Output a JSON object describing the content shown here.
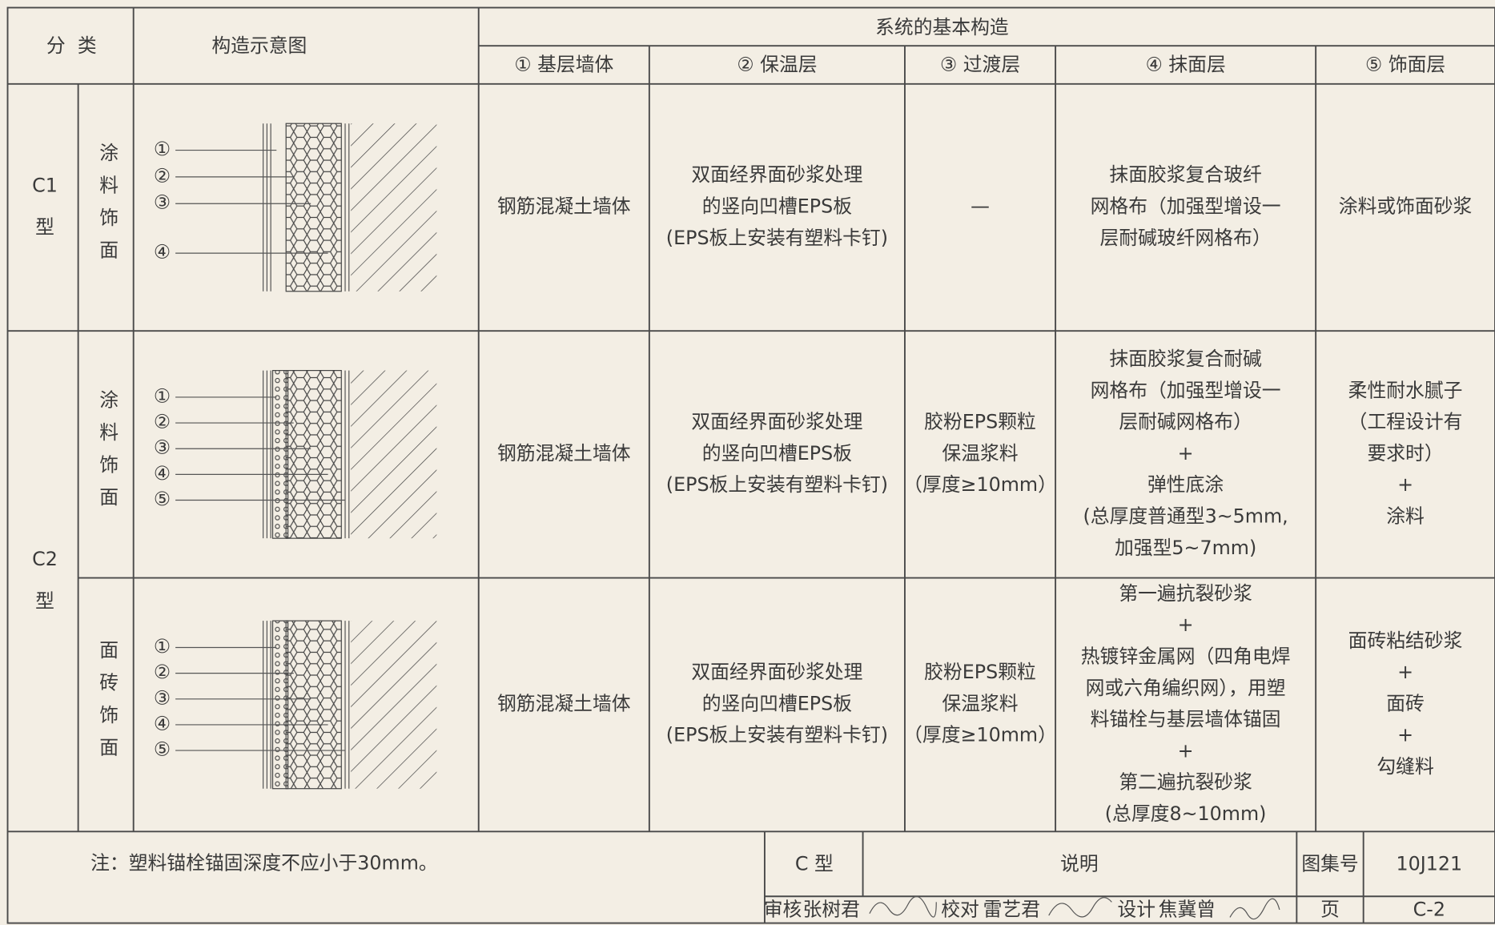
{
  "header": {
    "category": "分  类",
    "diagram": "构造示意图",
    "system": "系统的基本构造",
    "columns": [
      "① 基层墙体",
      "② 保温层",
      "③ 过渡层",
      "④ 抹面层",
      "⑤ 饰面层"
    ]
  },
  "groups": [
    {
      "type": [
        "C1",
        "型"
      ],
      "rows": [
        {
          "finish": "涂料饰面",
          "labels": [
            "①",
            "②",
            "③",
            "④"
          ],
          "cells": [
            [
              "钢筋混凝土墙体"
            ],
            [
              "双面经界面砂浆处理",
              "的竖向凹槽EPS板",
              "(EPS板上安装有塑料卡钉)"
            ],
            [
              "—"
            ],
            [
              "抹面胶浆复合玻纤",
              "网格布（加强型增设一",
              "层耐碱玻纤网格布）"
            ],
            [
              "涂料或饰面砂浆"
            ]
          ]
        }
      ]
    },
    {
      "type": [
        "C2",
        "型"
      ],
      "rows": [
        {
          "finish": "涂料饰面",
          "labels": [
            "①",
            "②",
            "③",
            "④",
            "⑤"
          ],
          "cells": [
            [
              "钢筋混凝土墙体"
            ],
            [
              "双面经界面砂浆处理",
              "的竖向凹槽EPS板",
              "(EPS板上安装有塑料卡钉)"
            ],
            [
              "胶粉EPS颗粒",
              "保温浆料",
              "（厚度≥10mm）"
            ],
            [
              "抹面胶浆复合耐碱",
              "网格布（加强型增设一",
              "层耐碱网格布）",
              "+",
              "弹性底涂",
              "(总厚度普通型3~5mm,",
              "加强型5~7mm)"
            ],
            [
              "柔性耐水腻子",
              "（工程设计有",
              "要求时）",
              "+",
              "涂料"
            ]
          ]
        },
        {
          "finish": "面砖饰面",
          "labels": [
            "①",
            "②",
            "③",
            "④",
            "⑤"
          ],
          "cells": [
            [
              "钢筋混凝土墙体"
            ],
            [
              "双面经界面砂浆处理",
              "的竖向凹槽EPS板",
              "(EPS板上安装有塑料卡钉)"
            ],
            [
              "胶粉EPS颗粒",
              "保温浆料",
              "（厚度≥10mm）"
            ],
            [
              "第一遍抗裂砂浆",
              "+",
              "热镀锌金属网（四角电焊",
              "网或六角编织网），用塑",
              "料锚栓与基层墙体锚固",
              "+",
              "第二遍抗裂砂浆",
              "(总厚度8~10mm)"
            ],
            [
              "面砖粘结砂浆",
              "+",
              "面砖",
              "+",
              "勾缝料"
            ]
          ]
        }
      ]
    }
  ],
  "note": "注：塑料锚栓锚固深度不应小于30mm。",
  "title_block": {
    "type": "C 型",
    "title": "说明",
    "atlas_label": "图集号",
    "atlas": "10J121",
    "review": "审核",
    "reviewer": "张树君",
    "check": "校对",
    "checker": "雷艺君",
    "design": "设计",
    "designer": "焦冀曾",
    "page_label": "页",
    "page": "C-2"
  }
}
